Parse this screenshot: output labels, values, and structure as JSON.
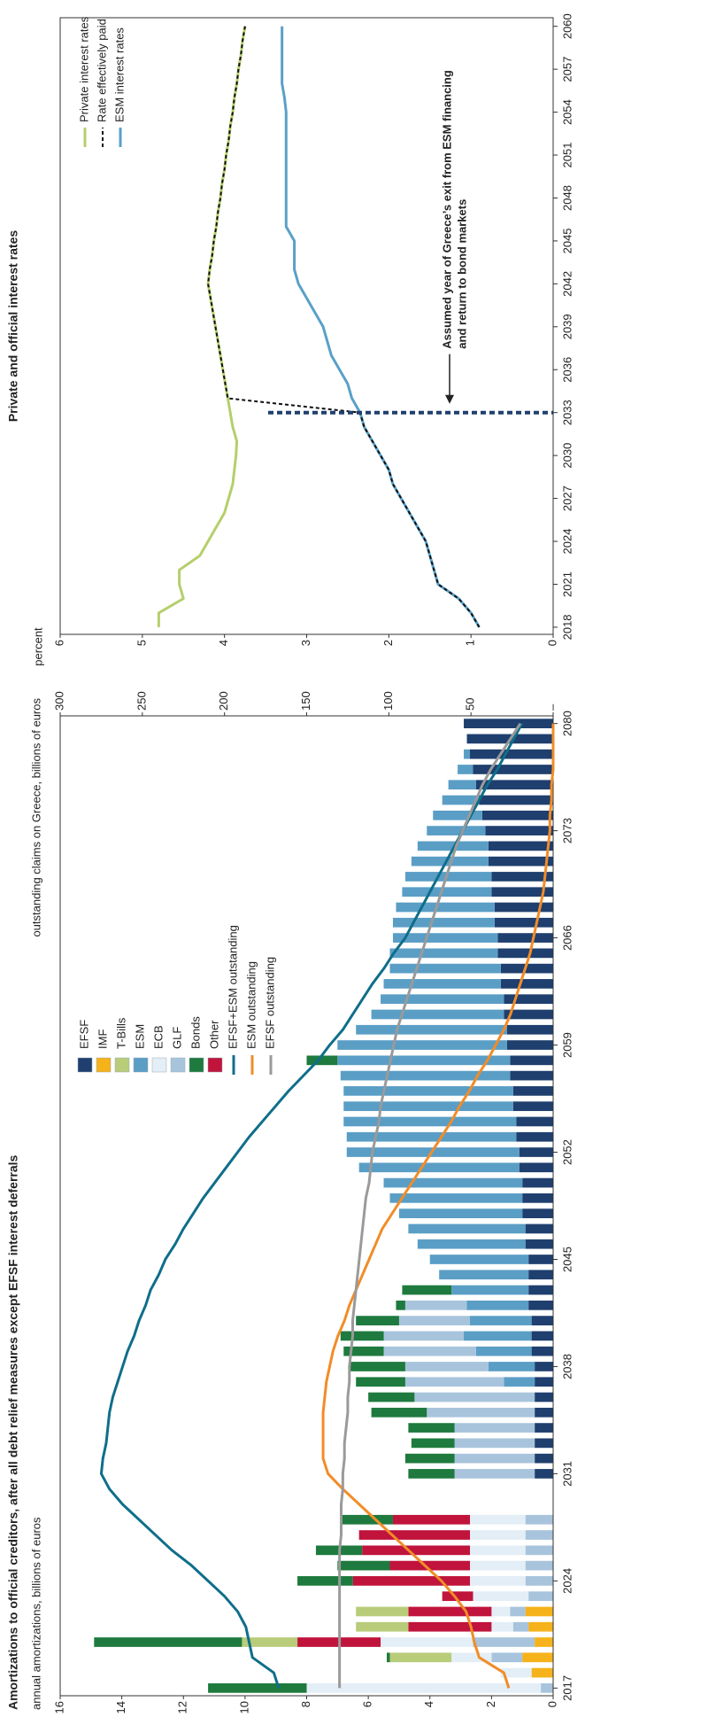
{
  "chart_data": [
    {
      "type": "bar",
      "stacked": true,
      "title": "Amortizations to official creditors, after all debt relief measures except EFSF interest deferrals",
      "ylabel": "annual amortizations, billions of euros",
      "y2label": "outstanding claims  on Greece, billions of euros",
      "x": [
        2017,
        2018,
        2019,
        2020,
        2021,
        2022,
        2023,
        2024,
        2025,
        2026,
        2027,
        2028,
        2029,
        2030,
        2031,
        2032,
        2033,
        2034,
        2035,
        2036,
        2037,
        2038,
        2039,
        2040,
        2041,
        2042,
        2043,
        2044,
        2045,
        2046,
        2047,
        2048,
        2049,
        2050,
        2051,
        2052,
        2053,
        2054,
        2055,
        2056,
        2057,
        2058,
        2059,
        2060,
        2061,
        2062,
        2063,
        2064,
        2065,
        2066,
        2067,
        2068,
        2069,
        2070,
        2071,
        2072,
        2073,
        2074,
        2075,
        2076,
        2077,
        2078,
        2079,
        2080
      ],
      "xlim": [
        2016.5,
        2080.5
      ],
      "xticks": [
        2017,
        2024,
        2031,
        2038,
        2045,
        2052,
        2059,
        2066,
        2073,
        2080
      ],
      "ylim": [
        0,
        16
      ],
      "yticks": [
        0,
        2,
        4,
        6,
        8,
        10,
        12,
        14,
        16
      ],
      "y2lim": [
        0,
        300
      ],
      "y2ticks": [
        {
          "value": 0,
          "label": "–"
        },
        50,
        100,
        150,
        200,
        250,
        300
      ],
      "series": [
        {
          "name": "EFSF",
          "color": "#1f3f6e",
          "values": [
            0,
            0,
            0,
            0,
            0,
            0,
            0,
            0,
            0,
            0,
            0,
            0,
            0,
            0,
            0.6,
            0.6,
            0.6,
            0.6,
            0.6,
            0.6,
            0.6,
            0.6,
            0.7,
            0.7,
            0.7,
            0.8,
            0.8,
            0.8,
            0.8,
            0.9,
            0.9,
            1.0,
            1.0,
            1.0,
            1.1,
            1.1,
            1.2,
            1.2,
            1.3,
            1.3,
            1.4,
            1.4,
            1.5,
            1.5,
            1.6,
            1.6,
            1.7,
            1.7,
            1.8,
            1.8,
            1.9,
            1.9,
            2.0,
            2.0,
            2.1,
            2.1,
            2.2,
            2.3,
            2.4,
            2.5,
            2.6,
            2.7,
            2.8,
            2.9
          ]
        },
        {
          "name": "IMF",
          "color": "#f5b21a",
          "values": [
            0,
            0.7,
            1.0,
            0.6,
            0.8,
            0.9,
            0,
            0,
            0,
            0,
            0,
            0,
            0,
            0,
            0,
            0,
            0,
            0,
            0,
            0,
            0,
            0,
            0,
            0,
            0,
            0,
            0,
            0,
            0,
            0,
            0,
            0,
            0,
            0,
            0,
            0,
            0,
            0,
            0,
            0,
            0,
            0,
            0,
            0,
            0,
            0,
            0,
            0,
            0,
            0,
            0,
            0,
            0,
            0,
            0,
            0,
            0,
            0,
            0,
            0,
            0,
            0,
            0,
            0
          ]
        },
        {
          "name": "T-Bills",
          "color": "#b8cc7a",
          "values": [
            0,
            0,
            2.0,
            1.8,
            1.7,
            1.7,
            0,
            0,
            0,
            0,
            0,
            0,
            0,
            0,
            0,
            0,
            0,
            0,
            0,
            0,
            0,
            0,
            0,
            0,
            0,
            0,
            0,
            0,
            0,
            0,
            0,
            0,
            0,
            0,
            0,
            0,
            0,
            0,
            0,
            0,
            0,
            0,
            0,
            0,
            0,
            0,
            0,
            0,
            0,
            0,
            0,
            0,
            0,
            0,
            0,
            0,
            0,
            0,
            0,
            0,
            0,
            0,
            0,
            0
          ]
        },
        {
          "name": "ESM",
          "color": "#5a9ec6",
          "values": [
            0,
            0,
            0,
            0,
            0,
            0,
            0,
            0,
            0,
            0,
            0,
            0,
            0,
            0,
            0,
            0,
            0,
            0,
            0,
            0,
            1.0,
            1.5,
            1.8,
            2.2,
            2.0,
            2.0,
            2.5,
            2.9,
            3.2,
            3.5,
            3.8,
            4.0,
            4.3,
            4.5,
            5.2,
            5.6,
            5.5,
            5.6,
            5.5,
            5.5,
            5.5,
            5.6,
            5.5,
            4.9,
            4.3,
            4.0,
            3.8,
            3.6,
            3.5,
            3.4,
            3.3,
            3.2,
            2.9,
            2.8,
            2.5,
            2.3,
            1.9,
            1.6,
            1.2,
            0.9,
            0.5,
            0.2,
            0,
            0
          ]
        },
        {
          "name": "ECB",
          "color": "#e3eef7",
          "values": [
            7.6,
            1.0,
            1.3,
            3.0,
            0.7,
            0.6,
            1.8,
            1.8,
            1.8,
            1.8,
            1.8,
            1.8,
            0,
            0,
            0,
            0,
            0,
            0,
            0,
            0,
            0,
            0,
            0,
            0,
            0,
            0,
            0,
            0,
            0,
            0,
            0,
            0,
            0,
            0,
            0,
            0,
            0,
            0,
            0,
            0,
            0,
            0,
            0,
            0,
            0,
            0,
            0,
            0,
            0,
            0,
            0,
            0,
            0,
            0,
            0,
            0,
            0,
            0,
            0,
            0,
            0,
            0,
            0,
            0
          ]
        },
        {
          "name": "GLF",
          "color": "#a8c4dc",
          "values": [
            0.4,
            0,
            1.0,
            2.0,
            0.5,
            0.5,
            0.8,
            0.9,
            0.9,
            0.9,
            0.9,
            0.9,
            0,
            0,
            2.6,
            2.6,
            2.6,
            2.6,
            3.5,
            3.9,
            3.2,
            2.7,
            3.0,
            2.6,
            2.3,
            2.0,
            0,
            0,
            0,
            0,
            0,
            0,
            0,
            0,
            0,
            0,
            0,
            0,
            0,
            0,
            0,
            0,
            0,
            0,
            0,
            0,
            0,
            0,
            0,
            0,
            0,
            0,
            0,
            0,
            0,
            0,
            0,
            0,
            0,
            0,
            0,
            0,
            0,
            0
          ]
        },
        {
          "name": "Bonds",
          "color": "#1e7a3e",
          "values": [
            3.2,
            0,
            0.1,
            4.8,
            0,
            0,
            0,
            1.8,
            1.7,
            1.5,
            0,
            1.7,
            0,
            0,
            1.5,
            1.6,
            1.4,
            1.5,
            1.8,
            1.5,
            1.6,
            1.8,
            1.3,
            1.4,
            1.4,
            0.3,
            1.6,
            0,
            0,
            0,
            0,
            0,
            0,
            0,
            0,
            0,
            0,
            0,
            0,
            0,
            0,
            1.0,
            0,
            0,
            0,
            0,
            0,
            0,
            0,
            0,
            0,
            0,
            0,
            0,
            0,
            0,
            0,
            0,
            0,
            0,
            0,
            0,
            0,
            0
          ]
        },
        {
          "name": "Other",
          "color": "#c0143c",
          "values": [
            0,
            0,
            0,
            2.7,
            2.7,
            2.7,
            1.0,
            3.8,
            2.6,
            3.5,
            3.6,
            2.5,
            0,
            0,
            0,
            0,
            0,
            0,
            0,
            0,
            0,
            0,
            0,
            0,
            0,
            0,
            0,
            0,
            0,
            0,
            0,
            0,
            0,
            0,
            0,
            0,
            0,
            0,
            0,
            0,
            0,
            0,
            0,
            0,
            0,
            0,
            0,
            0,
            0,
            0,
            0,
            0,
            0,
            0,
            0,
            0,
            0,
            0,
            0,
            0,
            0,
            0,
            0,
            0
          ]
        },
        {
          "name": "EFSF+ESM outstanding",
          "type": "line",
          "axis": "y2",
          "color": "#0f6e8a",
          "values": [
            167,
            170,
            183,
            185,
            187,
            192,
            200,
            210,
            220,
            232,
            242,
            252,
            262,
            270,
            275,
            274,
            272,
            271,
            270,
            268,
            265,
            262,
            259,
            255,
            252,
            248,
            245,
            240,
            236,
            230,
            225,
            219,
            213,
            206,
            199,
            192,
            185,
            177,
            169,
            161,
            152,
            143,
            136,
            128,
            122,
            116,
            110,
            103,
            97,
            90,
            85,
            80,
            75,
            70,
            65,
            60,
            55,
            50,
            45,
            40,
            34,
            29,
            24,
            19
          ]
        },
        {
          "name": "ESM outstanding",
          "type": "line",
          "axis": "y2",
          "color": "#f28c28",
          "values": [
            27,
            30,
            45,
            48,
            50,
            53,
            60,
            68,
            78,
            88,
            98,
            108,
            118,
            128,
            137,
            140,
            140,
            140,
            140,
            139,
            138,
            136,
            134,
            131,
            127,
            124,
            120,
            116,
            112,
            108,
            104,
            98,
            92,
            86,
            80,
            74,
            68,
            62,
            57,
            51,
            46,
            40,
            35,
            30,
            26,
            23,
            20,
            17,
            14,
            12,
            10,
            8,
            6,
            5,
            4,
            3,
            2,
            2,
            1,
            1,
            0,
            0,
            0,
            0
          ]
        },
        {
          "name": "EFSF outstanding",
          "type": "line",
          "axis": "y2",
          "color": "#9a9a9a",
          "values": [
            130,
            130,
            130,
            130,
            130,
            130,
            130,
            130,
            130,
            130,
            129,
            129,
            129,
            128,
            128,
            127,
            127,
            126,
            125,
            125,
            124,
            124,
            123,
            122,
            122,
            121,
            120,
            119,
            118,
            117,
            116,
            115,
            114,
            112,
            111,
            110,
            108,
            106,
            105,
            103,
            101,
            99,
            97,
            95,
            92,
            89,
            86,
            83,
            80,
            77,
            74,
            71,
            68,
            65,
            62,
            59,
            55,
            51,
            47,
            43,
            38,
            32,
            26,
            20
          ]
        }
      ]
    },
    {
      "type": "line",
      "title": "Private and official interest rates",
      "ylabel": "percent",
      "x": [
        2018,
        2019,
        2020,
        2021,
        2022,
        2023,
        2024,
        2025,
        2026,
        2027,
        2028,
        2029,
        2030,
        2031,
        2032,
        2033,
        2034,
        2035,
        2036,
        2037,
        2038,
        2039,
        2040,
        2041,
        2042,
        2043,
        2044,
        2045,
        2046,
        2047,
        2048,
        2049,
        2050,
        2051,
        2052,
        2053,
        2054,
        2055,
        2056,
        2057,
        2058,
        2059,
        2060
      ],
      "xlim": [
        2017.5,
        2060.6
      ],
      "xticks": [
        2018,
        2021,
        2024,
        2027,
        2030,
        2033,
        2036,
        2039,
        2042,
        2045,
        2048,
        2051,
        2054,
        2057,
        2060
      ],
      "ylim": [
        0,
        6
      ],
      "yticks": [
        0,
        1,
        2,
        3,
        4,
        5,
        6
      ],
      "series": [
        {
          "name": "Private interest rates",
          "color": "#b5cf6b",
          "values": [
            4.8,
            4.8,
            4.5,
            4.55,
            4.55,
            4.3,
            4.2,
            4.1,
            4.0,
            3.95,
            3.9,
            3.88,
            3.86,
            3.85,
            3.9,
            3.93,
            3.96,
            3.99,
            4.02,
            4.05,
            4.08,
            4.11,
            4.14,
            4.17,
            4.2,
            4.18,
            4.15,
            4.13,
            4.1,
            4.08,
            4.05,
            4.03,
            4.0,
            3.98,
            3.95,
            3.93,
            3.9,
            3.88,
            3.85,
            3.83,
            3.8,
            3.78,
            3.75
          ]
        },
        {
          "name": "Rate effectively paid",
          "color": "#111111",
          "style": "dashed",
          "values": [
            0.9,
            1.0,
            1.15,
            1.4,
            1.45,
            1.5,
            1.55,
            1.65,
            1.75,
            1.85,
            1.95,
            2.0,
            2.1,
            2.2,
            2.3,
            2.35,
            3.96,
            3.99,
            4.02,
            4.05,
            4.08,
            4.11,
            4.14,
            4.17,
            4.2,
            4.18,
            4.15,
            4.13,
            4.1,
            4.08,
            4.05,
            4.03,
            4.0,
            3.98,
            3.95,
            3.93,
            3.9,
            3.88,
            3.85,
            3.83,
            3.8,
            3.78,
            3.75
          ]
        },
        {
          "name": "ESM interest rates",
          "color": "#5aa0c8",
          "values": [
            0.9,
            1.0,
            1.15,
            1.4,
            1.45,
            1.5,
            1.55,
            1.65,
            1.75,
            1.85,
            1.95,
            2.0,
            2.1,
            2.2,
            2.3,
            2.35,
            2.45,
            2.5,
            2.6,
            2.7,
            2.75,
            2.8,
            2.9,
            3.0,
            3.1,
            3.15,
            3.15,
            3.15,
            3.25,
            3.25,
            3.25,
            3.25,
            3.25,
            3.25,
            3.25,
            3.25,
            3.25,
            3.27,
            3.3,
            3.3,
            3.3,
            3.3,
            3.3
          ]
        }
      ],
      "annotations": [
        {
          "text": [
            "Assumed year of Greece’s exit from ESM financing",
            "and return to bond markets"
          ],
          "x": 2033,
          "color": "#1f3f6e"
        }
      ]
    }
  ]
}
